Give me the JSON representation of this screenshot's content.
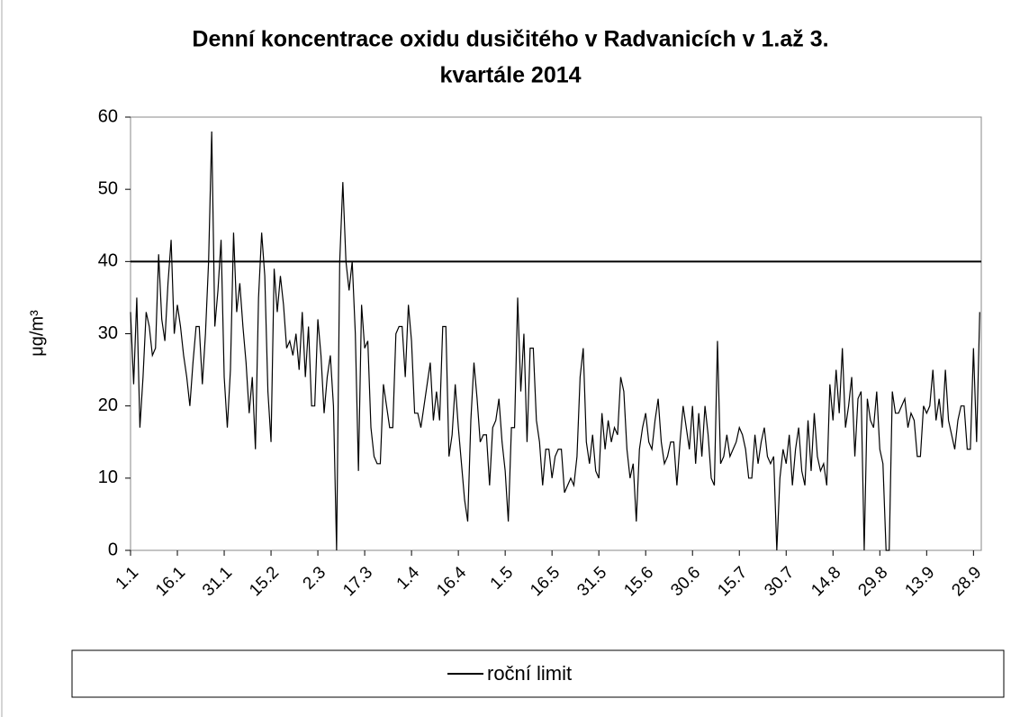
{
  "chart_data": {
    "type": "line",
    "title": [
      "Denní koncentrace oxidu dusičitého v Radvanicích v 1.až 3.",
      "kvartále  2014"
    ],
    "y_label": "μg/m³",
    "categories": [
      "1.1",
      null,
      null,
      null,
      null,
      null,
      null,
      null,
      null,
      null,
      null,
      null,
      null,
      null,
      null,
      "16.1",
      null,
      null,
      null,
      null,
      null,
      null,
      null,
      null,
      null,
      null,
      null,
      null,
      null,
      null,
      "31.1",
      null,
      null,
      null,
      null,
      null,
      null,
      null,
      null,
      null,
      null,
      null,
      null,
      null,
      null,
      "15.2",
      null,
      null,
      null,
      null,
      null,
      null,
      null,
      null,
      null,
      null,
      null,
      null,
      null,
      null,
      "2.3",
      null,
      null,
      null,
      null,
      null,
      null,
      null,
      null,
      null,
      null,
      null,
      null,
      null,
      null,
      "17.3",
      null,
      null,
      null,
      null,
      null,
      null,
      null,
      null,
      null,
      null,
      null,
      null,
      null,
      null,
      "1.4",
      null,
      null,
      null,
      null,
      null,
      null,
      null,
      null,
      null,
      null,
      null,
      null,
      null,
      null,
      "16.4",
      null,
      null,
      null,
      null,
      null,
      null,
      null,
      null,
      null,
      null,
      null,
      null,
      null,
      null,
      "1.5",
      null,
      null,
      null,
      null,
      null,
      null,
      null,
      null,
      null,
      null,
      null,
      null,
      null,
      null,
      "16.5",
      null,
      null,
      null,
      null,
      null,
      null,
      null,
      null,
      null,
      null,
      null,
      null,
      null,
      null,
      "31.5",
      null,
      null,
      null,
      null,
      null,
      null,
      null,
      null,
      null,
      null,
      null,
      null,
      null,
      null,
      "15.6",
      null,
      null,
      null,
      null,
      null,
      null,
      null,
      null,
      null,
      null,
      null,
      null,
      null,
      null,
      "30.6",
      null,
      null,
      null,
      null,
      null,
      null,
      null,
      null,
      null,
      null,
      null,
      null,
      null,
      null,
      "15.7",
      null,
      null,
      null,
      null,
      null,
      null,
      null,
      null,
      null,
      null,
      null,
      null,
      null,
      null,
      "30.7",
      null,
      null,
      null,
      null,
      null,
      null,
      null,
      null,
      null,
      null,
      null,
      null,
      null,
      null,
      "14.8",
      null,
      null,
      null,
      null,
      null,
      null,
      null,
      null,
      null,
      null,
      null,
      null,
      null,
      null,
      "29.8",
      null,
      null,
      null,
      null,
      null,
      null,
      null,
      null,
      null,
      null,
      null,
      null,
      null,
      null,
      "13.9",
      null,
      null,
      null,
      null,
      null,
      null,
      null,
      null,
      null,
      null,
      null,
      null,
      null,
      null,
      "28.9",
      null,
      null
    ],
    "series": [
      {
        "color": "#000000",
        "values": [
          33,
          23,
          35,
          17,
          24,
          33,
          31,
          27,
          28,
          41,
          32,
          29,
          37,
          43,
          30,
          34,
          31,
          27,
          24,
          20,
          26,
          31,
          31,
          23,
          30,
          40,
          58,
          31,
          36,
          43,
          24,
          17,
          25,
          44,
          33,
          37,
          31,
          26,
          19,
          24,
          14,
          35,
          44,
          38,
          22,
          15,
          39,
          33,
          38,
          34,
          28,
          29,
          27,
          30,
          25,
          33,
          24,
          31,
          20,
          20,
          32,
          27,
          19,
          24,
          27,
          20,
          0,
          40,
          51,
          40,
          36,
          40,
          30,
          11,
          34,
          28,
          29,
          17,
          13,
          12,
          12,
          23,
          20,
          17,
          17,
          30,
          31,
          31,
          24,
          34,
          29,
          19,
          19,
          17,
          20,
          23,
          26,
          18,
          22,
          18,
          31,
          31,
          13,
          16,
          23,
          17,
          12,
          7,
          4,
          18,
          26,
          21,
          15,
          16,
          16,
          9,
          17,
          18,
          21,
          15,
          11,
          4,
          17,
          17,
          35,
          22,
          30,
          15,
          28,
          28,
          18,
          15,
          9,
          14,
          14,
          10,
          13,
          14,
          14,
          8,
          9,
          10,
          9,
          13,
          24,
          28,
          15,
          12,
          16,
          11,
          10,
          19,
          14,
          18,
          15,
          17,
          16,
          24,
          22,
          14,
          10,
          12,
          4,
          14,
          17,
          19,
          15,
          14,
          18,
          21,
          15,
          12,
          13,
          15,
          15,
          9,
          15,
          20,
          17,
          14,
          20,
          12,
          19,
          13,
          20,
          16,
          10,
          9,
          29,
          12,
          13,
          16,
          13,
          14,
          15,
          17,
          16,
          14,
          10,
          10,
          16,
          12,
          15,
          17,
          13,
          12,
          13,
          0,
          10,
          14,
          12,
          16,
          9,
          14,
          17,
          11,
          9,
          18,
          11,
          19,
          13,
          11,
          12,
          9,
          23,
          18,
          25,
          19,
          28,
          17,
          20,
          24,
          13,
          21,
          22,
          0,
          21,
          18,
          17,
          22,
          14,
          12,
          0,
          0,
          22,
          19,
          19,
          20,
          21,
          17,
          19,
          18,
          13,
          13,
          20,
          19,
          20,
          25,
          18,
          21,
          17,
          25,
          18,
          16,
          14,
          18,
          20,
          20,
          14,
          14,
          28,
          15,
          33
        ]
      }
    ],
    "reference_line": {
      "name": "roční limit",
      "value": 40,
      "color": "#000000"
    },
    "ylim": [
      0,
      60
    ],
    "yticks": [
      0,
      10,
      20,
      30,
      40,
      50,
      60
    ]
  }
}
